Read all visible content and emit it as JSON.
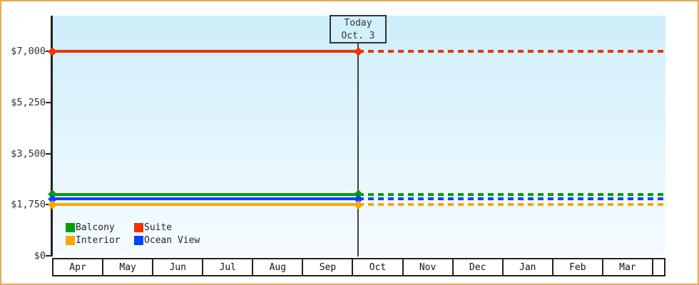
{
  "chart_data": {
    "type": "line",
    "title": "",
    "x_categories": [
      "Apr",
      "May",
      "Jun",
      "Jul",
      "Aug",
      "Sep",
      "Oct",
      "Nov",
      "Dec",
      "Jan",
      "Feb",
      "Mar"
    ],
    "y_axis": {
      "range": [
        0,
        7000
      ],
      "ticks": [
        {
          "label": "$0",
          "value": 0
        },
        {
          "label": "$1,750",
          "value": 1750
        },
        {
          "label": "$3,500",
          "value": 3500
        },
        {
          "label": "$5,250",
          "value": 5250
        },
        {
          "label": "$7,000",
          "value": 7000
        }
      ]
    },
    "series": [
      {
        "name": "Suite",
        "color": "#ee3300",
        "value": 7000
      },
      {
        "name": "Balcony",
        "color": "#00a000",
        "value": 2100
      },
      {
        "name": "Ocean View",
        "color": "#0044ff",
        "value": 1950
      },
      {
        "name": "Interior",
        "color": "#ffa500",
        "value": 1750
      }
    ],
    "line_style_note": "flat horizontal lines; solid before today, dashed after today",
    "today": {
      "label_line1": "Today",
      "label_line2": "Oct. 3",
      "month": "Oct",
      "day": 3
    },
    "legend": {
      "position": "bottom-left",
      "items": [
        {
          "label": "Balcony",
          "color": "#00a000"
        },
        {
          "label": "Suite",
          "color": "#ee3300"
        },
        {
          "label": "Interior",
          "color": "#ffa500"
        },
        {
          "label": "Ocean View",
          "color": "#0044ff"
        }
      ]
    },
    "grid": "off"
  },
  "colors": {
    "frame_border": "#e8a85c",
    "plot_bg_top": "#cdeefb",
    "plot_bg_bottom": "#f6fcff",
    "axis": "#222222",
    "today_line": "#39424a",
    "today_box_bg": "#d2f0fb",
    "today_box_border": "#333333",
    "text": "#333333"
  }
}
